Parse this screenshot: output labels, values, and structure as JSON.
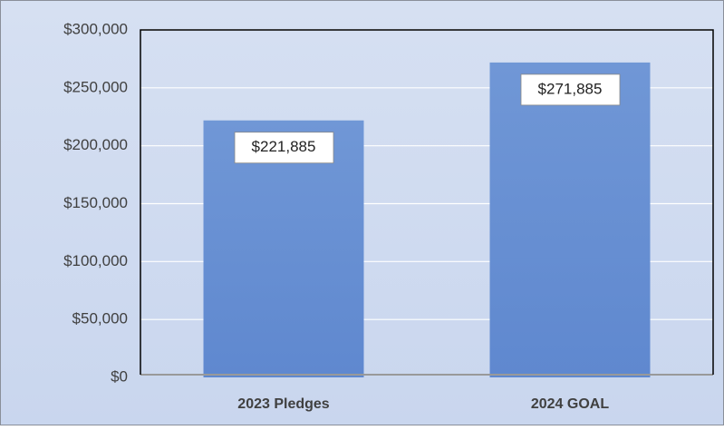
{
  "chart_data": {
    "type": "bar",
    "categories": [
      "2023 Pledges",
      "2024 GOAL"
    ],
    "values": [
      221885,
      271885
    ],
    "value_labels": [
      "$221,885",
      "$271,885"
    ],
    "color": "#6a90d2",
    "ylim": [
      0,
      300000
    ],
    "yticks": [
      {
        "value": 0,
        "label": "$0"
      },
      {
        "value": 50000,
        "label": "$50,000"
      },
      {
        "value": 100000,
        "label": "$100,000"
      },
      {
        "value": 150000,
        "label": "$150,000"
      },
      {
        "value": 200000,
        "label": "$200,000"
      },
      {
        "value": 250000,
        "label": "$250,000"
      },
      {
        "value": 300000,
        "label": "$300,000"
      }
    ],
    "grid": true
  }
}
